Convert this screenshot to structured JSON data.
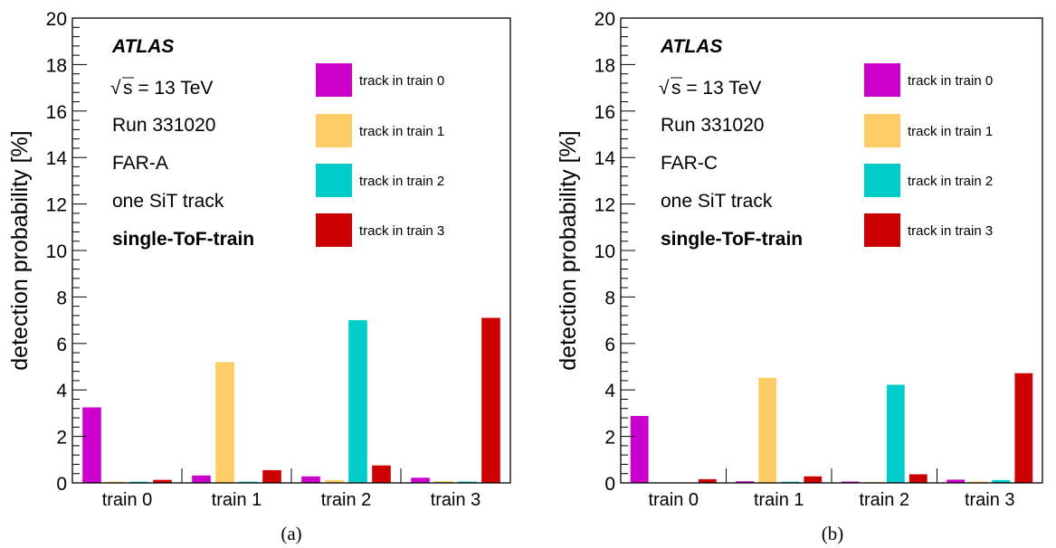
{
  "chart_data": [
    {
      "type": "bar",
      "panel_label": "(a)",
      "ylabel": "detection probability [%]",
      "ylim": [
        0,
        20
      ],
      "yticks": [
        0,
        2,
        4,
        6,
        8,
        10,
        12,
        14,
        16,
        18,
        20
      ],
      "categories": [
        "train 0",
        "train 1",
        "train 2",
        "train 3"
      ],
      "series": [
        {
          "name": "track in train 0",
          "color": "#cc00cc",
          "values": [
            3.25,
            0.32,
            0.28,
            0.22
          ]
        },
        {
          "name": "track in train 1",
          "color": "#ffcc66",
          "values": [
            0.05,
            5.2,
            0.12,
            0.08
          ]
        },
        {
          "name": "track in train 2",
          "color": "#00cccc",
          "values": [
            0.05,
            0.05,
            7.0,
            0.06
          ]
        },
        {
          "name": "track in train 3",
          "color": "#cc0000",
          "values": [
            0.13,
            0.55,
            0.75,
            7.1
          ]
        }
      ],
      "annotations": {
        "experiment": "ATLAS",
        "sqrt_s": "s",
        "energy": " = 13 TeV",
        "run": "Run 331020",
        "station": "FAR-A",
        "selection": "one SiT track",
        "mode": "single-ToF-train"
      },
      "legend_placement": "top-right",
      "grid": false
    },
    {
      "type": "bar",
      "panel_label": "(b)",
      "ylabel": "detection probability [%]",
      "ylim": [
        0,
        20
      ],
      "yticks": [
        0,
        2,
        4,
        6,
        8,
        10,
        12,
        14,
        16,
        18,
        20
      ],
      "categories": [
        "train 0",
        "train 1",
        "train 2",
        "train 3"
      ],
      "series": [
        {
          "name": "track in train 0",
          "color": "#cc00cc",
          "values": [
            2.88,
            0.07,
            0.06,
            0.14
          ]
        },
        {
          "name": "track in train 1",
          "color": "#ffcc66",
          "values": [
            0.02,
            4.52,
            0.04,
            0.06
          ]
        },
        {
          "name": "track in train 2",
          "color": "#00cccc",
          "values": [
            0.02,
            0.05,
            4.22,
            0.12
          ]
        },
        {
          "name": "track in train 3",
          "color": "#cc0000",
          "values": [
            0.16,
            0.28,
            0.37,
            4.72
          ]
        }
      ],
      "annotations": {
        "experiment": "ATLAS",
        "sqrt_s": "s",
        "energy": " = 13 TeV",
        "run": "Run 331020",
        "station": "FAR-C",
        "selection": "one SiT track",
        "mode": "single-ToF-train"
      },
      "legend_placement": "top-right",
      "grid": false
    }
  ]
}
